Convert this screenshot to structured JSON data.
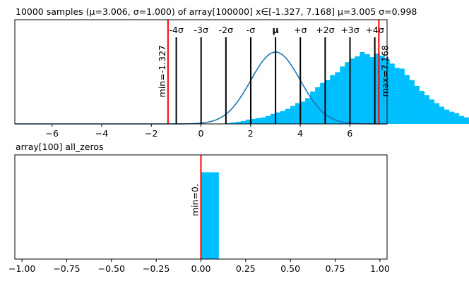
{
  "chart_data": [
    {
      "type": "bar",
      "title": "10000 samples (μ=3.006, σ=1.000) of array[100000] x∈[-1.327, 7.168] μ=3.005 σ=0.998",
      "xlim": [
        -7.5,
        7.5
      ],
      "xticks": [
        -6,
        -4,
        -2,
        0,
        2,
        4,
        6
      ],
      "xtick_labels": [
        "−6",
        "−4",
        "−2",
        "0",
        "2",
        "4",
        "6"
      ],
      "histogram": {
        "bin_start": -0.6,
        "bin_width": 0.2,
        "counts": [
          0,
          0,
          0,
          0,
          0,
          0,
          0,
          0,
          1,
          2,
          3,
          4,
          6,
          7,
          8,
          9,
          11,
          14,
          16,
          18,
          21,
          25,
          29,
          31,
          36,
          45,
          51,
          57,
          61,
          68,
          72,
          80,
          86,
          91,
          94,
          100,
          97,
          93,
          98,
          95,
          90,
          84,
          78,
          77,
          68,
          61,
          53,
          46,
          40,
          34,
          29,
          24,
          20,
          17,
          15,
          11,
          9,
          7,
          6,
          4,
          3,
          2,
          1,
          1,
          0,
          0,
          0
        ],
        "color": "#00bfff"
      },
      "curve": {
        "mu": 3.006,
        "sigma": 1.0,
        "peak": 100,
        "color": "#1f77b4"
      },
      "sigma_lines": [
        {
          "x": -0.994,
          "label": "-4σ"
        },
        {
          "x": 0.006,
          "label": "-3σ"
        },
        {
          "x": 1.006,
          "label": "-2σ"
        },
        {
          "x": 2.006,
          "label": "-σ"
        },
        {
          "x": 3.006,
          "label": "μ"
        },
        {
          "x": 4.006,
          "label": "+σ"
        },
        {
          "x": 5.006,
          "label": "+2σ"
        },
        {
          "x": 6.006,
          "label": "+3σ"
        },
        {
          "x": 7.006,
          "label": "+4σ"
        }
      ],
      "min_line": {
        "x": -1.327,
        "label": "min=-1.327",
        "color": "#ff0000"
      },
      "max_line": {
        "x": 7.168,
        "label": "max=7.168",
        "color": "#ff0000"
      }
    },
    {
      "type": "bar",
      "title": "array[100] all_zeros",
      "xlim": [
        -1.04,
        1.04
      ],
      "xticks": [
        -1.0,
        -0.75,
        -0.5,
        -0.25,
        0.0,
        0.25,
        0.5,
        0.75,
        1.0
      ],
      "xtick_labels": [
        "−1.00",
        "−0.75",
        "−0.50",
        "−0.25",
        "0.00",
        "0.25",
        "0.50",
        "0.75",
        "1.00"
      ],
      "bars": [
        {
          "x0": 0.0,
          "x1": 0.1,
          "value": 1.0
        }
      ],
      "ylim": [
        0,
        1.2
      ],
      "bar_color": "#00bfff",
      "min_line": {
        "x": 0.0,
        "label": "min=0.",
        "color": "#ff0000"
      }
    }
  ]
}
